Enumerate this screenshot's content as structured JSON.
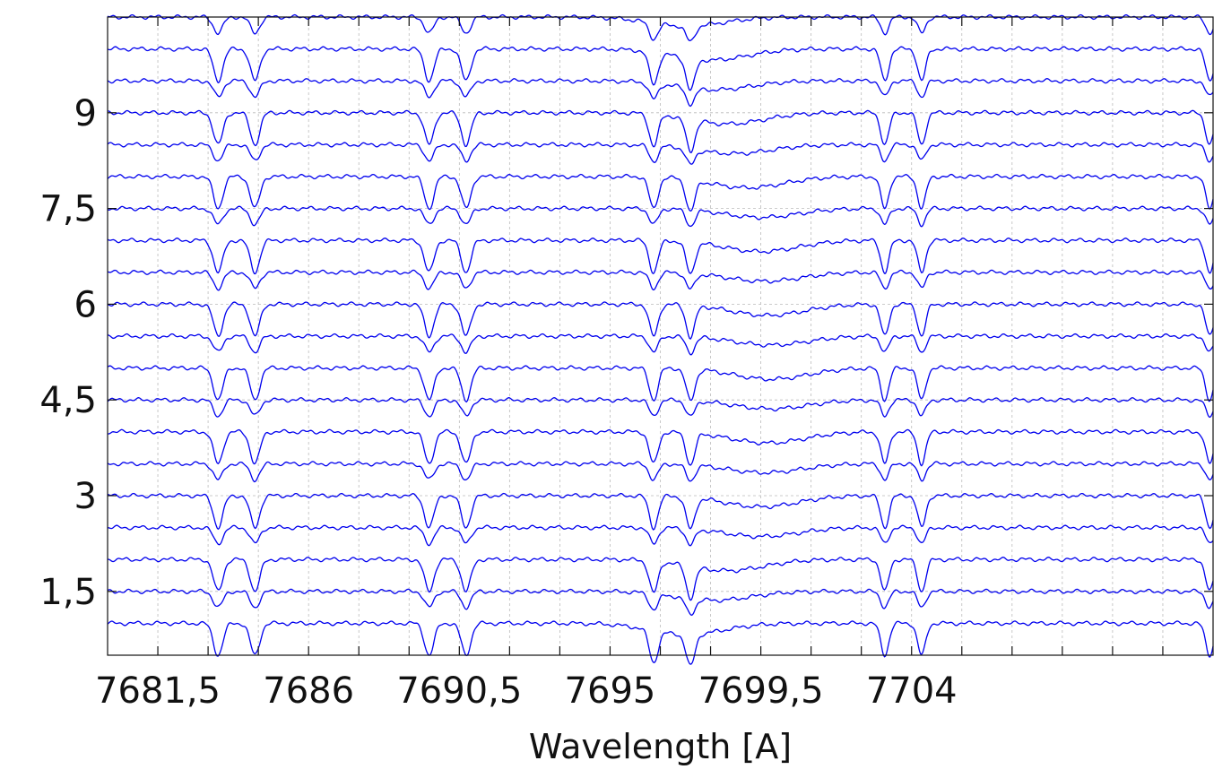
{
  "chart_data": {
    "type": "line",
    "title": "",
    "xlabel": "Wavelength [A]",
    "ylabel": "",
    "xlim": [
      7680.0,
      7713.0
    ],
    "ylim": [
      0.5,
      10.5
    ],
    "x_ticks": [
      7681.5,
      7686,
      7690.5,
      7695,
      7699.5,
      7704
    ],
    "x_tick_labels": [
      "7681,5",
      "7686",
      "7690,5",
      "7695",
      "7699,5",
      "7704"
    ],
    "x_minor_step": 1.5,
    "y_ticks": [
      1.5,
      3,
      4.5,
      6,
      7.5,
      9
    ],
    "y_tick_labels": [
      "1,5",
      "3",
      "4,5",
      "6",
      "7,5",
      "9"
    ],
    "grid": true,
    "line_color": "#0000ee",
    "series_offsets": [
      1.0,
      1.5,
      2.0,
      2.5,
      3.0,
      3.5,
      4.0,
      4.5,
      5.0,
      5.5,
      6.0,
      6.5,
      7.0,
      7.5,
      8.0,
      8.5,
      9.0,
      9.5,
      10.0,
      10.5
    ],
    "telluric_lines": [
      {
        "center": 7683.3,
        "width": 0.14
      },
      {
        "center": 7684.4,
        "width": 0.14
      },
      {
        "center": 7689.6,
        "width": 0.14
      },
      {
        "center": 7690.7,
        "width": 0.14
      },
      {
        "center": 7696.3,
        "width": 0.13
      },
      {
        "center": 7697.4,
        "width": 0.13
      },
      {
        "center": 7703.2,
        "width": 0.12
      },
      {
        "center": 7704.3,
        "width": 0.12
      },
      {
        "center": 7712.9,
        "width": 0.12
      }
    ],
    "broad_feature": {
      "centers": [
        7697.3,
        7698.1,
        7698.5,
        7699.5,
        7699.5,
        7699.6,
        7699.7,
        7699.8,
        7699.8,
        7699.8,
        7699.7,
        7699.6,
        7699.5,
        7699.5,
        7699.1,
        7698.7,
        7698.5,
        7698.1,
        7698.0,
        7697.3
      ],
      "depth": 0.35
    }
  }
}
